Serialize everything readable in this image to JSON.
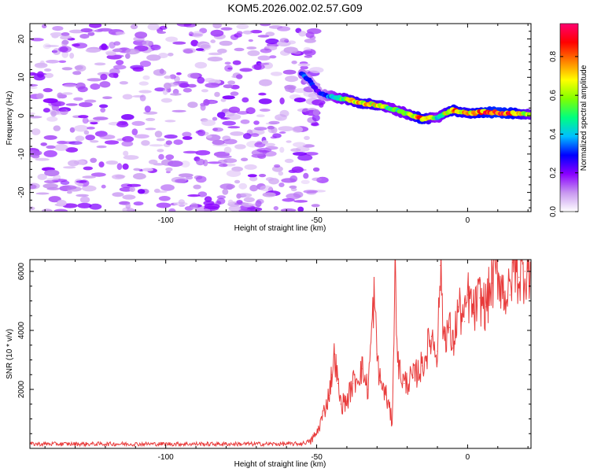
{
  "title": "KOM5.2026.002.02.57.G09",
  "chart_data": [
    {
      "type": "heatmap",
      "title": "KOM5.2026.002.02.57.G09",
      "xlabel": "Height of straight line (km)",
      "ylabel": "Frequency (Hz)",
      "xlim": [
        -145,
        21
      ],
      "ylim": [
        -25,
        24
      ],
      "xticks": [
        -100,
        -50,
        0
      ],
      "yticks": [
        -20,
        -10,
        0,
        10,
        20
      ],
      "colorbar": {
        "label": "Normalized spectral amplitude",
        "range": [
          0,
          0.97
        ],
        "ticks": [
          0.0,
          0.2,
          0.4,
          0.6,
          0.8
        ],
        "tick_labels": [
          "0.0",
          "0.2",
          "0.4",
          "0.6",
          "0.8"
        ],
        "colors": [
          "#ffffff",
          "#c898f0",
          "#8a00ff",
          "#0000ff",
          "#00bfff",
          "#00ff80",
          "#80ff00",
          "#ffff00",
          "#ff8000",
          "#ff0000",
          "#ff0070"
        ]
      },
      "noise_region": {
        "x": [
          -145,
          -50
        ],
        "y": [
          -25,
          24
        ],
        "level": 0.18
      },
      "signal_ridge": {
        "x": [
          -55,
          -52,
          -50,
          -48,
          -45,
          -40,
          -35,
          -30,
          -25,
          -20,
          -15,
          -10,
          -5,
          0,
          5,
          10,
          15,
          21
        ],
        "frequency": [
          11,
          9,
          6.5,
          5.5,
          5,
          4.2,
          3.3,
          2.8,
          1.8,
          0.5,
          -0.8,
          -0.5,
          1.5,
          0.5,
          1,
          0.8,
          0.6,
          0.5
        ],
        "amplitude": [
          0.35,
          0.3,
          0.25,
          0.3,
          0.45,
          0.65,
          0.75,
          0.7,
          0.55,
          0.6,
          0.85,
          0.5,
          0.8,
          0.75,
          0.85,
          0.9,
          0.85,
          0.6
        ]
      }
    },
    {
      "type": "line",
      "xlabel": "Height of straight line (km)",
      "ylabel": "SNR (10 * v/v)",
      "xlim": [
        -145,
        21
      ],
      "ylim": [
        0,
        6400
      ],
      "xticks": [
        -100,
        -50,
        0
      ],
      "yticks": [
        2000,
        4000,
        6000
      ],
      "series": [
        {
          "name": "SNR",
          "color": "#e83a3a",
          "x": [
            -145,
            -120,
            -100,
            -80,
            -60,
            -55,
            -52,
            -50,
            -48,
            -46,
            -45,
            -44,
            -43,
            -42,
            -40,
            -38,
            -35,
            -33,
            -31,
            -30,
            -29,
            -27,
            -25,
            -24,
            -23,
            -21,
            -18,
            -15,
            -12,
            -10,
            -9,
            -8,
            -6,
            -5,
            -3,
            -1,
            0,
            2,
            4,
            6,
            8,
            10,
            12,
            14,
            15,
            17,
            19,
            21
          ],
          "y": [
            150,
            150,
            150,
            150,
            150,
            160,
            250,
            500,
            1100,
            1800,
            2500,
            3200,
            2200,
            1500,
            1600,
            2200,
            2700,
            2000,
            5200,
            3200,
            2300,
            1800,
            900,
            6000,
            2800,
            2200,
            2400,
            2800,
            3800,
            3300,
            6200,
            3900,
            4100,
            3400,
            4800,
            4300,
            5200,
            4600,
            5100,
            4800,
            5600,
            6000,
            5300,
            5200,
            6300,
            5800,
            6000,
            6200
          ]
        }
      ]
    }
  ]
}
